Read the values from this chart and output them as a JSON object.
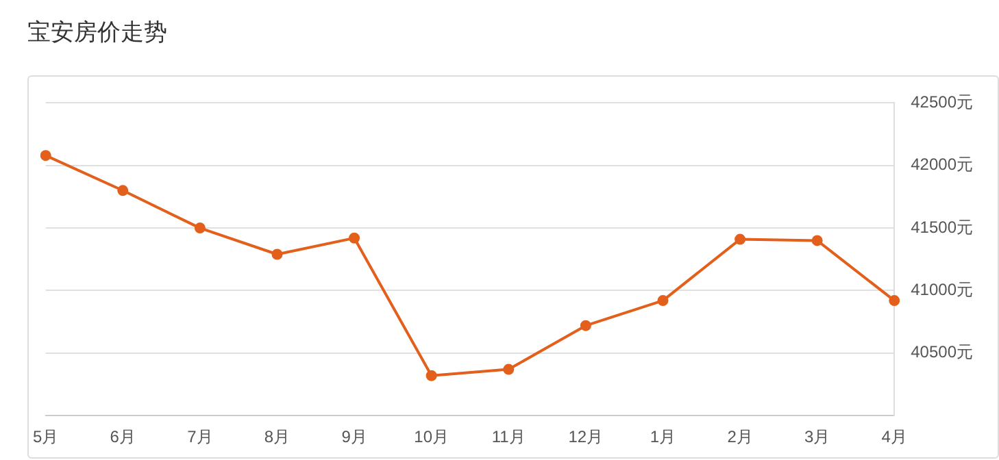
{
  "chart_data": {
    "type": "line",
    "title": "宝安房价走势",
    "categories": [
      "5月",
      "6月",
      "7月",
      "8月",
      "9月",
      "10月",
      "11月",
      "12月",
      "1月",
      "2月",
      "3月",
      "4月"
    ],
    "series": [
      {
        "color": "#e2601c",
        "values": [
          42080,
          41800,
          41500,
          41290,
          41420,
          40320,
          40370,
          40720,
          40920,
          41410,
          41400,
          40920
        ]
      }
    ],
    "ylim": [
      40000,
      42500
    ],
    "yticks": [
      {
        "value": 40000,
        "label": null
      },
      {
        "value": 40500,
        "label": "40500元"
      },
      {
        "value": 41000,
        "label": "41000元"
      },
      {
        "value": 41500,
        "label": "41500元"
      },
      {
        "value": 42000,
        "label": "42000元"
      },
      {
        "value": 42500,
        "label": "42500元"
      }
    ],
    "grid": "y",
    "legend": false,
    "marker": "circle",
    "line_style": "solid"
  }
}
